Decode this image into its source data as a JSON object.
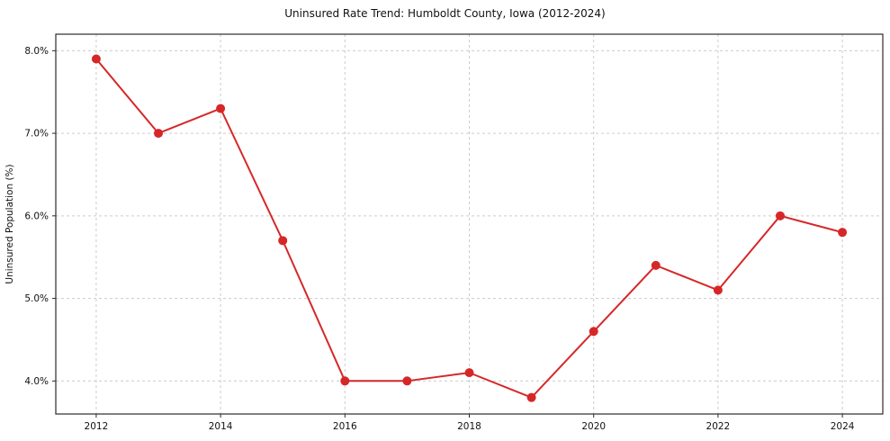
{
  "chart": {
    "title": "Uninsured Rate Trend: Humboldt County, Iowa (2012-2024)",
    "ylabel": "Uninsured Population (%)"
  },
  "chart_data": {
    "type": "line",
    "title": "Uninsured Rate Trend: Humboldt County, Iowa (2012-2024)",
    "xlabel": "",
    "ylabel": "Uninsured Population (%)",
    "x": [
      2012,
      2013,
      2014,
      2015,
      2016,
      2017,
      2018,
      2019,
      2020,
      2021,
      2022,
      2023,
      2024
    ],
    "values": [
      7.9,
      7.0,
      7.3,
      5.7,
      4.0,
      4.0,
      4.1,
      3.8,
      4.6,
      5.4,
      5.1,
      6.0,
      5.8
    ],
    "xticks": [
      2012,
      2014,
      2016,
      2018,
      2020,
      2022,
      2024
    ],
    "xtick_labels": [
      "2012",
      "2014",
      "2016",
      "2018",
      "2020",
      "2022",
      "2024"
    ],
    "yticks": [
      4.0,
      5.0,
      6.0,
      7.0,
      8.0
    ],
    "ytick_labels": [
      "4.0%",
      "5.0%",
      "6.0%",
      "7.0%",
      "8.0%"
    ],
    "xlim": [
      2011.35,
      2024.65
    ],
    "ylim": [
      3.6,
      8.2
    ],
    "grid": true,
    "legend": false,
    "colors": {
      "line": "#d62728",
      "marker": "#d62728",
      "grid": "#cccccc",
      "axis": "#2b2b2b",
      "background": "#ffffff"
    }
  }
}
